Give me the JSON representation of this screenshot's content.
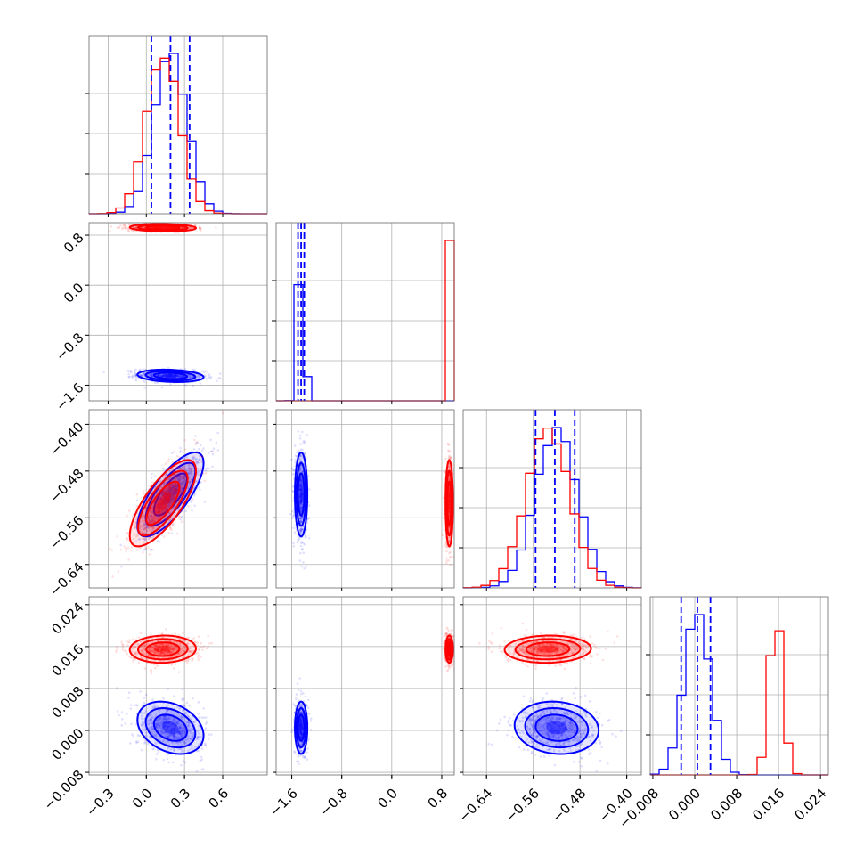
{
  "chart_data": {
    "type": "corner",
    "grid": true,
    "series": [
      {
        "color": "#0000ff",
        "params": [
          {
            "mean": 0.19,
            "sd": 0.13
          },
          {
            "mean": -1.45,
            "sd": 0.05
          },
          {
            "mean": -0.52,
            "sd": 0.036
          },
          {
            "mean": 0.0005,
            "sd": 0.0025
          }
        ],
        "correlations": [
          [
            0,
            1,
            -0.2
          ],
          [
            0,
            2,
            0.75
          ],
          [
            0,
            3,
            -0.3
          ],
          [
            1,
            2,
            0.0
          ],
          [
            1,
            3,
            0.0
          ],
          [
            2,
            3,
            -0.1
          ]
        ],
        "quantiles": [
          [
            0.04,
            0.19,
            0.34
          ],
          [
            -1.5,
            -1.45,
            -1.4
          ],
          [
            -0.556,
            -0.523,
            -0.489
          ],
          [
            -0.0026,
            0.0005,
            0.003
          ]
        ]
      },
      {
        "color": "#ff0000",
        "params": [
          {
            "mean": 0.13,
            "sd": 0.13
          },
          {
            "mean": 0.92,
            "sd": 0.03
          },
          {
            "mean": -0.535,
            "sd": 0.037
          },
          {
            "mean": 0.0155,
            "sd": 0.0013
          }
        ],
        "correlations": [
          [
            0,
            1,
            -0.1
          ],
          [
            0,
            2,
            0.75
          ],
          [
            0,
            3,
            0.05
          ],
          [
            1,
            2,
            0.0
          ],
          [
            1,
            3,
            0.0
          ],
          [
            2,
            3,
            0.05
          ]
        ],
        "quantiles": []
      }
    ],
    "axes": [
      {
        "range": [
          -0.45,
          0.95
        ],
        "ticks": [
          -0.3,
          0.0,
          0.3,
          0.6
        ],
        "tick_labels": [
          "−0.3",
          "0.0",
          "0.3",
          "0.6"
        ]
      },
      {
        "range": [
          -1.85,
          1.0
        ],
        "ticks": [
          -1.6,
          -0.8,
          0.0,
          0.8
        ],
        "tick_labels": [
          "−1.6",
          "−0.8",
          "0.0",
          "0.8"
        ]
      },
      {
        "range": [
          -0.68,
          -0.375
        ],
        "ticks": [
          -0.64,
          -0.56,
          -0.48,
          -0.4
        ],
        "tick_labels": [
          "−0.64",
          "−0.56",
          "−0.48",
          "−0.40"
        ]
      },
      {
        "range": [
          -0.0085,
          0.0255
        ],
        "ticks": [
          -0.008,
          0.0,
          0.008,
          0.016,
          0.024
        ],
        "tick_labels": [
          "−0.008",
          "0.000",
          "0.008",
          "0.016",
          "0.024"
        ]
      }
    ]
  }
}
